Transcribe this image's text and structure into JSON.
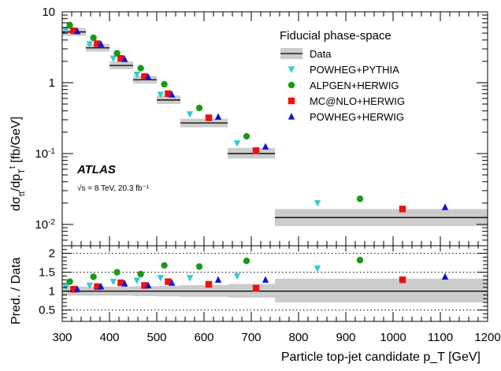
{
  "chart_data": {
    "type": "scatter",
    "title": "",
    "experiment_label": "ATLAS",
    "energy_label": "√s = 8 TeV, 20.3 fb⁻¹",
    "legend_title": "Fiducial phase-space",
    "legend_position": "top-right",
    "xlabel": "Particle top-jet candidate p_T [GeV]",
    "xlim": [
      300,
      1200
    ],
    "x_ticks": [
      300,
      400,
      500,
      600,
      700,
      800,
      900,
      1000,
      1100,
      1200
    ],
    "x_tick_labels": [
      "300",
      "400",
      "500",
      "600",
      "700",
      "800",
      "900",
      "1000",
      "1100",
      "1200"
    ],
    "top_panel": {
      "ylabel": "dσ_tt/dp_T^t [fb/GeV]",
      "ylabel_parts": {
        "d1": "dσ",
        "sub1": "tt",
        "slash": "/dp",
        "sub2": "T",
        "sup2": "t",
        "unit": " [fb/GeV]"
      },
      "yscale": "log",
      "ylim": [
        0.005,
        10
      ],
      "y_ticks": [
        0.01,
        0.1,
        1,
        10
      ],
      "y_tick_labels": [
        {
          "base": "10",
          "exp": "-2"
        },
        {
          "base": "10",
          "exp": "-1"
        },
        {
          "base": "1",
          "exp": ""
        },
        {
          "base": "10",
          "exp": ""
        }
      ],
      "data": {
        "name": "Data",
        "bins": [
          {
            "x_low": 300,
            "x_high": 350,
            "value": 5.2,
            "band_low": 4.6,
            "band_high": 5.9
          },
          {
            "x_low": 350,
            "x_high": 400,
            "value": 3.1,
            "band_low": 2.75,
            "band_high": 3.5
          },
          {
            "x_low": 400,
            "x_high": 450,
            "value": 1.75,
            "band_low": 1.55,
            "band_high": 2.0
          },
          {
            "x_low": 450,
            "x_high": 500,
            "value": 1.1,
            "band_low": 0.97,
            "band_high": 1.25
          },
          {
            "x_low": 500,
            "x_high": 550,
            "value": 0.57,
            "band_low": 0.5,
            "band_high": 0.66
          },
          {
            "x_low": 550,
            "x_high": 650,
            "value": 0.27,
            "band_low": 0.235,
            "band_high": 0.31
          },
          {
            "x_low": 650,
            "x_high": 750,
            "value": 0.1,
            "band_low": 0.085,
            "band_high": 0.12
          },
          {
            "x_low": 750,
            "x_high": 1200,
            "value": 0.0125,
            "band_low": 0.0095,
            "band_high": 0.0165
          }
        ]
      },
      "series": [
        {
          "name": "POWHEG+PYTHIA",
          "marker": "triangle-down",
          "color": "#33cccc",
          "x": [
            308,
            358,
            408,
            458,
            508,
            570,
            670,
            840
          ],
          "y": [
            5.6,
            3.5,
            2.2,
            1.3,
            0.68,
            0.36,
            0.14,
            0.02
          ]
        },
        {
          "name": "ALPGEN+HERWIG",
          "marker": "circle",
          "color": "#1a9a1a",
          "x": [
            316,
            366,
            416,
            466,
            516,
            590,
            690,
            930
          ],
          "y": [
            6.5,
            4.3,
            2.6,
            1.6,
            0.95,
            0.44,
            0.175,
            0.023
          ]
        },
        {
          "name": "MC@NLO+HERWIG",
          "marker": "square",
          "color": "#ee1111",
          "x": [
            324,
            374,
            424,
            474,
            524,
            610,
            710,
            1020
          ],
          "y": [
            5.4,
            3.55,
            2.2,
            1.22,
            0.7,
            0.32,
            0.11,
            0.0165
          ]
        },
        {
          "name": "POWHEG+HERWIG",
          "marker": "triangle-up",
          "color": "#1111cc",
          "x": [
            332,
            382,
            432,
            482,
            532,
            630,
            730,
            1110
          ],
          "y": [
            5.3,
            3.5,
            2.15,
            1.2,
            0.68,
            0.33,
            0.125,
            0.0175
          ]
        }
      ]
    },
    "ratio_panel": {
      "ylabel": "Pred. / Data",
      "ylim": [
        0.2,
        2.2
      ],
      "y_ticks": [
        0.5,
        1,
        1.5,
        2
      ],
      "y_tick_labels": [
        "0.5",
        "1",
        "1.5",
        "2"
      ],
      "dotted_lines": [
        0.5,
        1.5,
        2.0
      ],
      "band": [
        {
          "x_low": 300,
          "x_high": 350,
          "low": 0.88,
          "high": 1.12
        },
        {
          "x_low": 350,
          "x_high": 400,
          "low": 0.88,
          "high": 1.12
        },
        {
          "x_low": 400,
          "x_high": 450,
          "low": 0.88,
          "high": 1.12
        },
        {
          "x_low": 450,
          "x_high": 500,
          "low": 0.87,
          "high": 1.13
        },
        {
          "x_low": 500,
          "x_high": 550,
          "low": 0.86,
          "high": 1.14
        },
        {
          "x_low": 550,
          "x_high": 650,
          "low": 0.85,
          "high": 1.16
        },
        {
          "x_low": 650,
          "x_high": 750,
          "low": 0.83,
          "high": 1.19
        },
        {
          "x_low": 750,
          "x_high": 1200,
          "low": 0.7,
          "high": 1.33
        }
      ],
      "series": [
        {
          "name": "POWHEG+PYTHIA",
          "marker": "triangle-down",
          "color": "#33cccc",
          "x": [
            308,
            358,
            408,
            458,
            508,
            570,
            670,
            840
          ],
          "y": [
            1.1,
            1.15,
            1.25,
            1.28,
            1.35,
            1.35,
            1.4,
            1.6
          ]
        },
        {
          "name": "ALPGEN+HERWIG",
          "marker": "circle",
          "color": "#1a9a1a",
          "x": [
            316,
            366,
            416,
            466,
            516,
            590,
            690,
            930
          ],
          "y": [
            1.25,
            1.38,
            1.5,
            1.45,
            1.68,
            1.65,
            1.8,
            1.82
          ]
        },
        {
          "name": "MC@NLO+HERWIG",
          "marker": "square",
          "color": "#ee1111",
          "x": [
            324,
            374,
            424,
            474,
            524,
            610,
            710,
            1020
          ],
          "y": [
            1.05,
            1.12,
            1.22,
            1.15,
            1.25,
            1.18,
            1.08,
            1.3
          ]
        },
        {
          "name": "POWHEG+HERWIG",
          "marker": "triangle-up",
          "color": "#1111cc",
          "x": [
            332,
            382,
            432,
            482,
            532,
            630,
            730,
            1110
          ],
          "y": [
            1.05,
            1.12,
            1.2,
            1.15,
            1.22,
            1.3,
            1.3,
            1.38
          ]
        }
      ]
    }
  }
}
